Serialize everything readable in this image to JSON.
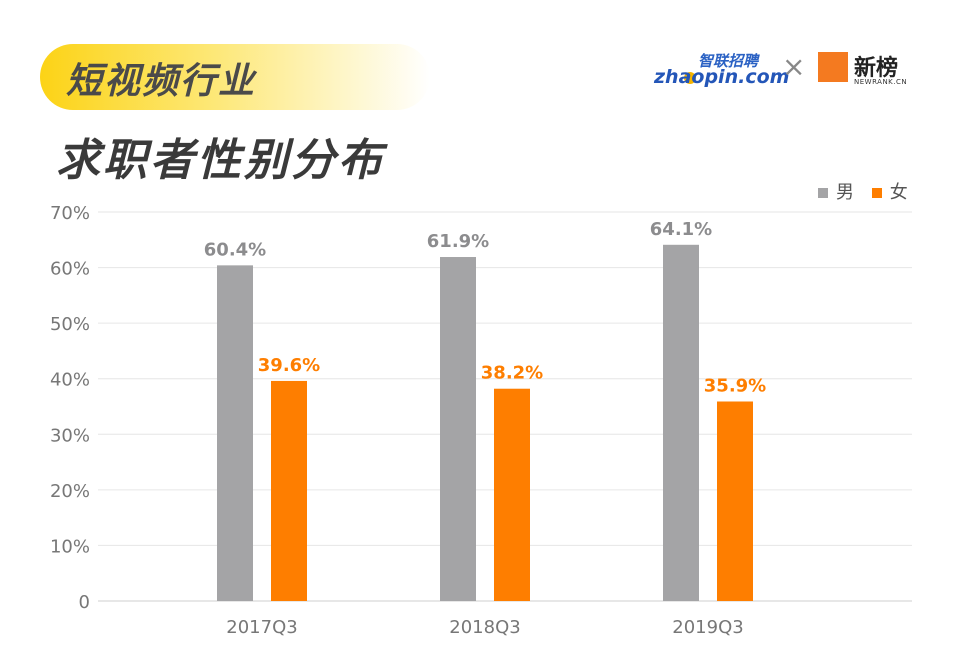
{
  "header": {
    "tag": "短视频行业",
    "title": "求职者性别分布"
  },
  "logos": {
    "zhaopin_cn": "智联招聘",
    "zhaopin_en": "zhaopin.com",
    "cross": "×",
    "newrank_cn": "新榜",
    "newrank_en": "NEWRANK.CN"
  },
  "colors": {
    "male": "#a4a4a6",
    "female": "#fe7e00",
    "axis_text": "#777777",
    "grid": "#e6e6e6"
  },
  "chart_data": {
    "type": "bar",
    "title": "求职者性别分布",
    "categories": [
      "2017Q3",
      "2018Q3",
      "2019Q3"
    ],
    "series": [
      {
        "name": "男",
        "values": [
          60.4,
          61.9,
          64.1
        ],
        "labels": [
          "60.4%",
          "61.9%",
          "64.1%"
        ]
      },
      {
        "name": "女",
        "values": [
          39.6,
          38.2,
          35.9
        ],
        "labels": [
          "39.6%",
          "38.2%",
          "35.9%"
        ]
      }
    ],
    "yticks": [
      "0",
      "10%",
      "20%",
      "30%",
      "40%",
      "50%",
      "60%",
      "70%"
    ],
    "ylim": [
      0,
      70
    ],
    "grid": true,
    "legend": "top-right"
  }
}
